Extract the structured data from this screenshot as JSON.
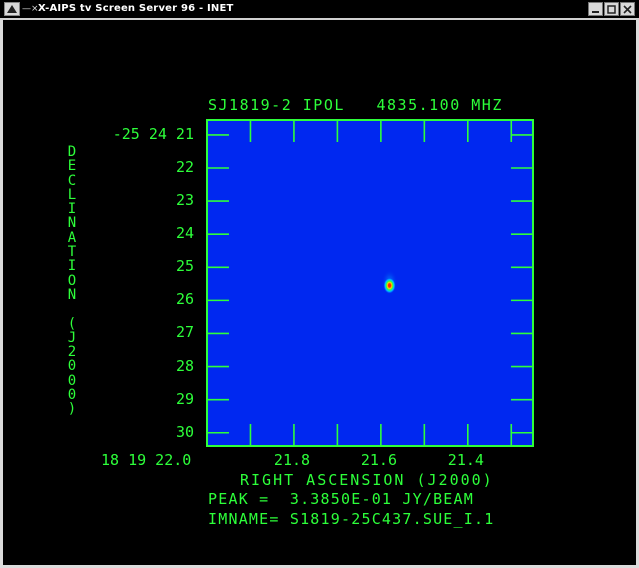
{
  "window": {
    "title": "X-AIPS tv Screen Server 96 - INET",
    "menu_glyph": "—⨯"
  },
  "plot": {
    "title": "SJ1819-2 IPOL   4835.100 MHZ",
    "ylabel": "DECLINATION (J2000)",
    "xlabel": "RIGHT ASCENSION (J2000)",
    "peak_text": "PEAK =  3.3850E-01 JY/BEAM",
    "imname_text": "IMNAME= S1819-25C437.SUE_I.1",
    "yticks": [
      "-25 24 21",
      "22",
      "23",
      "24",
      "25",
      "26",
      "27",
      "28",
      "29",
      "30"
    ],
    "xticks": [
      "18 19 22.0",
      "21.8",
      "21.6",
      "21.4"
    ],
    "colors": {
      "axis": "#2dff3a",
      "background_field": "#0028f0",
      "peak_core": "#ff2a00"
    }
  },
  "chart_data": {
    "type": "heatmap",
    "title": "SJ1819-2 IPOL   4835.100 MHZ",
    "xlabel": "RIGHT ASCENSION (J2000)",
    "ylabel": "DECLINATION (J2000)",
    "x_tick_labels": [
      "18 19 22.0",
      "21.8",
      "21.6",
      "21.4"
    ],
    "x_tick_values_sec": [
      22.0,
      21.8,
      21.6,
      21.4
    ],
    "y_tick_labels": [
      "-25 24 21",
      "22",
      "23",
      "24",
      "25",
      "26",
      "27",
      "28",
      "29",
      "30"
    ],
    "y_tick_values_arcsec": [
      21,
      22,
      23,
      24,
      25,
      26,
      27,
      28,
      29,
      30
    ],
    "xlim_sec": [
      22.0,
      21.25
    ],
    "ylim_arcsec": [
      20.55,
      30.4
    ],
    "source": {
      "ra_sec": 21.58,
      "dec_arcsec": 25.55,
      "peak_jy_per_beam": 0.3385
    },
    "grid": false
  }
}
